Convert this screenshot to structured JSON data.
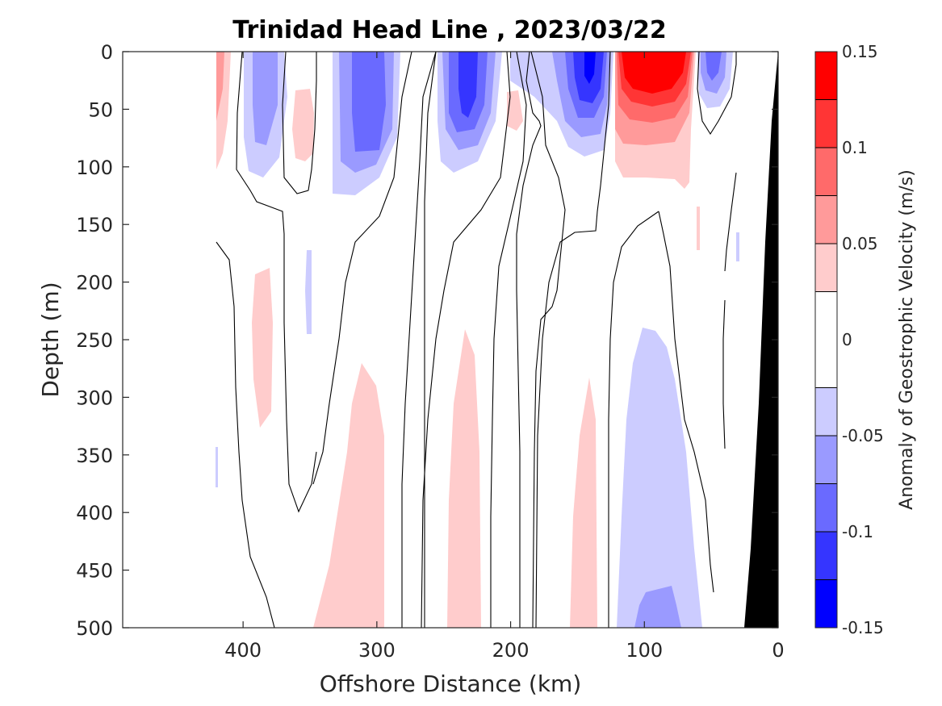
{
  "chart_data": {
    "type": "contour",
    "title": "Trinidad Head Line , 2023/03/22",
    "xlabel": "Offshore Distance (km)",
    "ylabel": "Depth (m)",
    "xlim": [
      490,
      0
    ],
    "ylim": [
      0,
      500
    ],
    "x_reversed": true,
    "y_reversed": true,
    "xticks": [
      400,
      300,
      200,
      100,
      0
    ],
    "yticks": [
      0,
      50,
      100,
      150,
      200,
      250,
      300,
      350,
      400,
      450,
      500
    ],
    "colorbar": {
      "label": "Anomaly of Geostrophic Velocity (m/s)",
      "ticks": [
        0.15,
        0.1,
        0.05,
        0,
        -0.05,
        -0.1,
        -0.15
      ],
      "tick_labels": [
        "0.15",
        "0.1",
        "0.05",
        "0",
        "-0.05",
        "-0.1",
        "-0.15"
      ],
      "levels": [
        0.15,
        0.125,
        0.1,
        0.075,
        0.05,
        0.025,
        -0.025,
        -0.05,
        -0.075,
        -0.1,
        -0.125,
        -0.15
      ],
      "colors": [
        "#ff0000",
        "#ff3535",
        "#ff6a6a",
        "#ff9a9a",
        "#ffcccc",
        "#ffffff",
        "#ccccff",
        "#9a9aff",
        "#6a6aff",
        "#3535ff",
        "#0000ff"
      ]
    },
    "features": [
      {
        "kind": "positive",
        "level": 1,
        "x": [
          420,
          410
        ],
        "depth": [
          0,
          110
        ]
      },
      {
        "kind": "negative",
        "level": 2,
        "x": [
          395,
          375
        ],
        "depth": [
          0,
          115
        ]
      },
      {
        "kind": "positive",
        "level": 1,
        "x": [
          370,
          352
        ],
        "depth": [
          35,
          140
        ]
      },
      {
        "kind": "negative",
        "level": 3,
        "x": [
          330,
          290
        ],
        "depth": [
          0,
          240
        ]
      },
      {
        "kind": "negative",
        "level": 3,
        "x": [
          250,
          210
        ],
        "depth": [
          0,
          215
        ]
      },
      {
        "kind": "positive",
        "level": 1,
        "x": [
          200,
          190
        ],
        "depth": [
          40,
          70
        ]
      },
      {
        "kind": "negative",
        "level": 4,
        "x": [
          180,
          120
        ],
        "depth": [
          0,
          190
        ]
      },
      {
        "kind": "positive",
        "level": 5,
        "x": [
          120,
          65
        ],
        "depth": [
          0,
          235
        ]
      },
      {
        "kind": "negative",
        "level": 3,
        "x": [
          60,
          35
        ],
        "depth": [
          0,
          135
        ]
      },
      {
        "kind": "positive",
        "level": 1,
        "x": [
          380,
          345
        ],
        "depth": [
          185,
          330
        ]
      },
      {
        "kind": "negative",
        "level": 1,
        "x": [
          350,
          345
        ],
        "depth": [
          310,
          412
        ]
      },
      {
        "kind": "positive",
        "level": 1,
        "x": [
          345,
          295
        ],
        "depth": [
          300,
          500
        ]
      },
      {
        "kind": "positive",
        "level": 1,
        "x": [
          245,
          225
        ],
        "depth": [
          320,
          500
        ]
      },
      {
        "kind": "positive",
        "level": 1,
        "x": [
          155,
          135
        ],
        "depth": [
          280,
          500
        ]
      },
      {
        "kind": "negative",
        "level": 2,
        "x": [
          120,
          55
        ],
        "depth": [
          235,
          500
        ]
      }
    ],
    "bathymetry": {
      "x_at_surface": 0,
      "x_at_bottom": 25
    }
  }
}
